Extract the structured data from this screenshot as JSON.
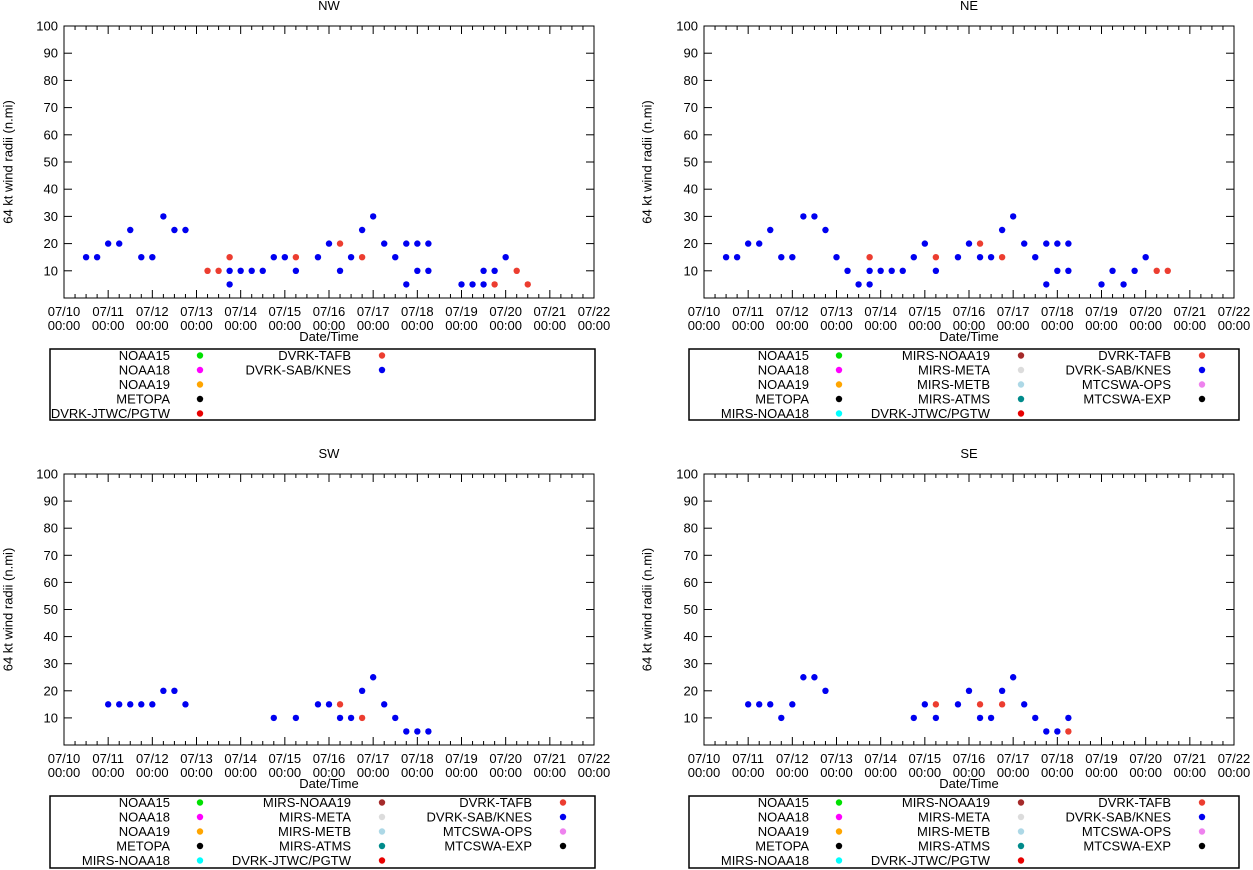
{
  "colors": {
    "NOAA15": "#00e000",
    "NOAA18": "#ff00ff",
    "NOAA19": "#ffa500",
    "METOPA": "#000000",
    "MIRS-NOAA18": "#00ffff",
    "MIRS-NOAA19": "#a52a2a",
    "MIRS-META": "#dcdcdc",
    "MIRS-METB": "#add8e6",
    "MIRS-ATMS": "#008b8b",
    "DVRK-JTWC/PGTW": "#e80000",
    "DVRK-TAFB": "#ec3d30",
    "DVRK-SAB/KNES": "#0000f0",
    "MTCSWA-OPS": "#ee82ee",
    "MTCSWA-EXP": "#000000"
  },
  "chart_data": [
    {
      "type": "scatter",
      "title": "NW",
      "xlabel": "Date/Time",
      "ylabel": "64 kt wind radii (n.mi)",
      "xlim": [
        10,
        22
      ],
      "ylim": [
        0,
        100
      ],
      "grid": false,
      "legend_position": "below",
      "x_ticks": [
        [
          "07/10",
          "00:00"
        ],
        [
          "07/11",
          "00:00"
        ],
        [
          "07/12",
          "00:00"
        ],
        [
          "07/13",
          "00:00"
        ],
        [
          "07/14",
          "00:00"
        ],
        [
          "07/15",
          "00:00"
        ],
        [
          "07/16",
          "00:00"
        ],
        [
          "07/17",
          "00:00"
        ],
        [
          "07/18",
          "00:00"
        ],
        [
          "07/19",
          "00:00"
        ],
        [
          "07/20",
          "00:00"
        ],
        [
          "07/21",
          "00:00"
        ],
        [
          "07/22",
          "00:00"
        ]
      ],
      "y_ticks": [
        10,
        20,
        30,
        40,
        50,
        60,
        70,
        80,
        90,
        100
      ],
      "legend": [
        [
          "NOAA15",
          "NOAA18",
          "NOAA19",
          "METOPA",
          "DVRK-JTWC/PGTW"
        ],
        [
          "DVRK-TAFB",
          "DVRK-SAB/KNES"
        ]
      ],
      "series": [
        {
          "name": "DVRK-SAB/KNES",
          "points": [
            [
              10.5,
              15
            ],
            [
              10.75,
              15
            ],
            [
              11,
              20
            ],
            [
              11.25,
              20
            ],
            [
              11.5,
              25
            ],
            [
              11.75,
              15
            ],
            [
              12,
              15
            ],
            [
              12.25,
              30
            ],
            [
              12.5,
              25
            ],
            [
              12.75,
              25
            ],
            [
              13.75,
              10
            ],
            [
              13.75,
              5
            ],
            [
              14,
              10
            ],
            [
              14.25,
              10
            ],
            [
              14.5,
              10
            ],
            [
              14.75,
              15
            ],
            [
              15,
              15
            ],
            [
              15.25,
              10
            ],
            [
              15.75,
              15
            ],
            [
              16,
              20
            ],
            [
              16.25,
              10
            ],
            [
              16.5,
              15
            ],
            [
              16.75,
              25
            ],
            [
              17,
              30
            ],
            [
              17.25,
              20
            ],
            [
              17.5,
              15
            ],
            [
              17.75,
              20
            ],
            [
              17.75,
              5
            ],
            [
              18,
              20
            ],
            [
              18,
              10
            ],
            [
              18.25,
              20
            ],
            [
              18.25,
              10
            ],
            [
              19,
              5
            ],
            [
              19.25,
              5
            ],
            [
              19.5,
              5
            ],
            [
              19.5,
              10
            ],
            [
              19.75,
              10
            ],
            [
              20,
              15
            ]
          ]
        },
        {
          "name": "DVRK-TAFB",
          "points": [
            [
              13.25,
              10
            ],
            [
              13.5,
              10
            ],
            [
              13.75,
              15
            ],
            [
              15.25,
              15
            ],
            [
              16.25,
              20
            ],
            [
              16.75,
              15
            ],
            [
              19.75,
              5
            ],
            [
              20.25,
              10
            ],
            [
              20.5,
              5
            ]
          ]
        }
      ]
    },
    {
      "type": "scatter",
      "title": "NE",
      "xlabel": "Date/Time",
      "ylabel": "64 kt wind radii (n.mi)",
      "xlim": [
        10,
        22
      ],
      "ylim": [
        0,
        100
      ],
      "grid": false,
      "legend_position": "below",
      "x_ticks": [
        [
          "07/10",
          "00:00"
        ],
        [
          "07/11",
          "00:00"
        ],
        [
          "07/12",
          "00:00"
        ],
        [
          "07/13",
          "00:00"
        ],
        [
          "07/14",
          "00:00"
        ],
        [
          "07/15",
          "00:00"
        ],
        [
          "07/16",
          "00:00"
        ],
        [
          "07/17",
          "00:00"
        ],
        [
          "07/18",
          "00:00"
        ],
        [
          "07/19",
          "00:00"
        ],
        [
          "07/20",
          "00:00"
        ],
        [
          "07/21",
          "00:00"
        ],
        [
          "07/22",
          "00:00"
        ]
      ],
      "y_ticks": [
        10,
        20,
        30,
        40,
        50,
        60,
        70,
        80,
        90,
        100
      ],
      "legend": [
        [
          "NOAA15",
          "NOAA18",
          "NOAA19",
          "METOPA",
          "MIRS-NOAA18"
        ],
        [
          "MIRS-NOAA19",
          "MIRS-META",
          "MIRS-METB",
          "MIRS-ATMS",
          "DVRK-JTWC/PGTW"
        ],
        [
          "DVRK-TAFB",
          "DVRK-SAB/KNES",
          "MTCSWA-OPS",
          "MTCSWA-EXP"
        ]
      ],
      "series": [
        {
          "name": "DVRK-SAB/KNES",
          "points": [
            [
              10.5,
              15
            ],
            [
              10.75,
              15
            ],
            [
              11,
              20
            ],
            [
              11.25,
              20
            ],
            [
              11.5,
              25
            ],
            [
              11.75,
              15
            ],
            [
              12,
              15
            ],
            [
              12.25,
              30
            ],
            [
              12.5,
              30
            ],
            [
              12.75,
              25
            ],
            [
              13,
              15
            ],
            [
              13.25,
              10
            ],
            [
              13.5,
              5
            ],
            [
              13.75,
              10
            ],
            [
              13.75,
              5
            ],
            [
              14,
              10
            ],
            [
              14.25,
              10
            ],
            [
              14.5,
              10
            ],
            [
              14.75,
              15
            ],
            [
              15,
              20
            ],
            [
              15.25,
              10
            ],
            [
              15.75,
              15
            ],
            [
              16,
              20
            ],
            [
              16.25,
              15
            ],
            [
              16.5,
              15
            ],
            [
              16.75,
              25
            ],
            [
              17,
              30
            ],
            [
              17.25,
              20
            ],
            [
              17.5,
              15
            ],
            [
              17.75,
              20
            ],
            [
              17.75,
              5
            ],
            [
              18,
              20
            ],
            [
              18,
              10
            ],
            [
              18.25,
              20
            ],
            [
              18.25,
              10
            ],
            [
              19,
              5
            ],
            [
              19.25,
              10
            ],
            [
              19.5,
              5
            ],
            [
              19.75,
              10
            ],
            [
              20,
              15
            ]
          ]
        },
        {
          "name": "DVRK-TAFB",
          "points": [
            [
              13.75,
              15
            ],
            [
              15.25,
              15
            ],
            [
              16.25,
              20
            ],
            [
              16.75,
              15
            ],
            [
              20.25,
              10
            ],
            [
              20.5,
              10
            ]
          ]
        }
      ]
    },
    {
      "type": "scatter",
      "title": "SW",
      "xlabel": "Date/Time",
      "ylabel": "64 kt wind radii (n.mi)",
      "xlim": [
        10,
        22
      ],
      "ylim": [
        0,
        100
      ],
      "grid": false,
      "legend_position": "below",
      "x_ticks": [
        [
          "07/10",
          "00:00"
        ],
        [
          "07/11",
          "00:00"
        ],
        [
          "07/12",
          "00:00"
        ],
        [
          "07/13",
          "00:00"
        ],
        [
          "07/14",
          "00:00"
        ],
        [
          "07/15",
          "00:00"
        ],
        [
          "07/16",
          "00:00"
        ],
        [
          "07/17",
          "00:00"
        ],
        [
          "07/18",
          "00:00"
        ],
        [
          "07/19",
          "00:00"
        ],
        [
          "07/20",
          "00:00"
        ],
        [
          "07/21",
          "00:00"
        ],
        [
          "07/22",
          "00:00"
        ]
      ],
      "y_ticks": [
        10,
        20,
        30,
        40,
        50,
        60,
        70,
        80,
        90,
        100
      ],
      "legend": [
        [
          "NOAA15",
          "NOAA18",
          "NOAA19",
          "METOPA",
          "MIRS-NOAA18"
        ],
        [
          "MIRS-NOAA19",
          "MIRS-META",
          "MIRS-METB",
          "MIRS-ATMS",
          "DVRK-JTWC/PGTW"
        ],
        [
          "DVRK-TAFB",
          "DVRK-SAB/KNES",
          "MTCSWA-OPS",
          "MTCSWA-EXP"
        ]
      ],
      "series": [
        {
          "name": "DVRK-SAB/KNES",
          "points": [
            [
              11,
              15
            ],
            [
              11.25,
              15
            ],
            [
              11.5,
              15
            ],
            [
              11.75,
              15
            ],
            [
              12,
              15
            ],
            [
              12.25,
              20
            ],
            [
              12.5,
              20
            ],
            [
              12.75,
              15
            ],
            [
              14.75,
              10
            ],
            [
              15.25,
              10
            ],
            [
              15.75,
              15
            ],
            [
              16,
              15
            ],
            [
              16.25,
              10
            ],
            [
              16.5,
              10
            ],
            [
              16.75,
              20
            ],
            [
              17,
              25
            ],
            [
              17.25,
              15
            ],
            [
              17.5,
              10
            ],
            [
              17.75,
              5
            ],
            [
              18,
              5
            ],
            [
              18.25,
              5
            ]
          ]
        },
        {
          "name": "DVRK-TAFB",
          "points": [
            [
              16.25,
              15
            ],
            [
              16.75,
              10
            ]
          ]
        }
      ]
    },
    {
      "type": "scatter",
      "title": "SE",
      "xlabel": "Date/Time",
      "ylabel": "64 kt wind radii (n.mi)",
      "xlim": [
        10,
        22
      ],
      "ylim": [
        0,
        100
      ],
      "grid": false,
      "legend_position": "below",
      "x_ticks": [
        [
          "07/10",
          "00:00"
        ],
        [
          "07/11",
          "00:00"
        ],
        [
          "07/12",
          "00:00"
        ],
        [
          "07/13",
          "00:00"
        ],
        [
          "07/14",
          "00:00"
        ],
        [
          "07/15",
          "00:00"
        ],
        [
          "07/16",
          "00:00"
        ],
        [
          "07/17",
          "00:00"
        ],
        [
          "07/18",
          "00:00"
        ],
        [
          "07/19",
          "00:00"
        ],
        [
          "07/20",
          "00:00"
        ],
        [
          "07/21",
          "00:00"
        ],
        [
          "07/22",
          "00:00"
        ]
      ],
      "y_ticks": [
        10,
        20,
        30,
        40,
        50,
        60,
        70,
        80,
        90,
        100
      ],
      "legend": [
        [
          "NOAA15",
          "NOAA18",
          "NOAA19",
          "METOPA",
          "MIRS-NOAA18"
        ],
        [
          "MIRS-NOAA19",
          "MIRS-META",
          "MIRS-METB",
          "MIRS-ATMS",
          "DVRK-JTWC/PGTW"
        ],
        [
          "DVRK-TAFB",
          "DVRK-SAB/KNES",
          "MTCSWA-OPS",
          "MTCSWA-EXP"
        ]
      ],
      "series": [
        {
          "name": "DVRK-SAB/KNES",
          "points": [
            [
              11,
              15
            ],
            [
              11.25,
              15
            ],
            [
              11.5,
              15
            ],
            [
              11.75,
              10
            ],
            [
              12,
              15
            ],
            [
              12.25,
              25
            ],
            [
              12.5,
              25
            ],
            [
              12.75,
              20
            ],
            [
              14.75,
              10
            ],
            [
              15,
              15
            ],
            [
              15.25,
              10
            ],
            [
              15.75,
              15
            ],
            [
              16,
              20
            ],
            [
              16.25,
              10
            ],
            [
              16.5,
              10
            ],
            [
              16.75,
              20
            ],
            [
              17,
              25
            ],
            [
              17.25,
              15
            ],
            [
              17.5,
              10
            ],
            [
              17.75,
              5
            ],
            [
              18,
              5
            ],
            [
              18.25,
              10
            ]
          ]
        },
        {
          "name": "DVRK-TAFB",
          "points": [
            [
              15.25,
              15
            ],
            [
              16.25,
              15
            ],
            [
              16.75,
              15
            ],
            [
              18.25,
              5
            ]
          ]
        }
      ]
    }
  ]
}
